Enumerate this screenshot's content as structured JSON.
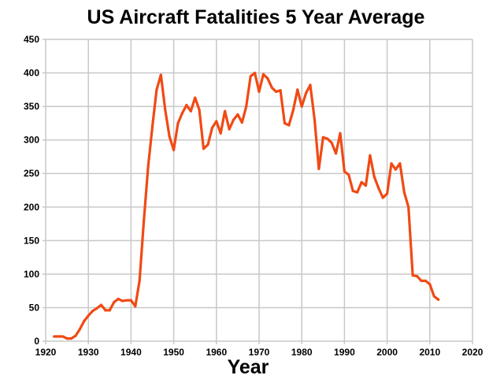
{
  "chart_data": {
    "type": "line",
    "title": "US Aircraft Fatalities 5 Year Average",
    "xlabel": "Year",
    "ylabel": "",
    "xlim": [
      1920,
      2020
    ],
    "ylim": [
      0,
      450
    ],
    "xticks": [
      1920,
      1930,
      1940,
      1950,
      1960,
      1970,
      1980,
      1990,
      2000,
      2010,
      2020
    ],
    "yticks": [
      0,
      50,
      100,
      150,
      200,
      250,
      300,
      350,
      400,
      450
    ],
    "grid": true,
    "legend": "none",
    "line_color": "#f04a14",
    "series": [
      {
        "x": [
          1922,
          1923,
          1924,
          1925,
          1926,
          1927,
          1928,
          1929,
          1930,
          1931,
          1932,
          1933,
          1934,
          1935,
          1936,
          1937,
          1938,
          1939,
          1940,
          1941,
          1942,
          1943,
          1944,
          1945,
          1946,
          1947,
          1948,
          1949,
          1950,
          1951,
          1952,
          1953,
          1954,
          1955,
          1956,
          1957,
          1958,
          1959,
          1960,
          1961,
          1962,
          1963,
          1964,
          1965,
          1966,
          1967,
          1968,
          1969,
          1970,
          1971,
          1972,
          1973,
          1974,
          1975,
          1976,
          1977,
          1978,
          1979,
          1980,
          1981,
          1982,
          1983,
          1984,
          1985,
          1986,
          1987,
          1988,
          1989,
          1990,
          1991,
          1992,
          1993,
          1994,
          1995,
          1996,
          1997,
          1998,
          1999,
          2000,
          2001,
          2002,
          2003,
          2004,
          2005,
          2006,
          2007,
          2008,
          2009,
          2010,
          2011,
          2012
        ],
        "y": [
          7,
          7,
          7,
          4,
          4,
          8,
          18,
          30,
          38,
          45,
          49,
          54,
          46,
          46,
          58,
          63,
          60,
          61,
          61,
          52,
          90,
          180,
          260,
          320,
          375,
          397,
          345,
          305,
          285,
          325,
          340,
          352,
          343,
          363,
          345,
          287,
          293,
          318,
          328,
          310,
          343,
          316,
          330,
          338,
          326,
          350,
          395,
          400,
          372,
          398,
          392,
          378,
          372,
          374,
          325,
          322,
          345,
          375,
          350,
          370,
          382,
          330,
          257,
          304,
          302,
          296,
          280,
          310,
          253,
          248,
          224,
          222,
          237,
          232,
          277,
          245,
          228,
          214,
          220,
          265,
          256,
          265,
          222,
          200,
          98,
          97,
          90,
          90,
          85,
          67,
          62
        ]
      }
    ]
  }
}
